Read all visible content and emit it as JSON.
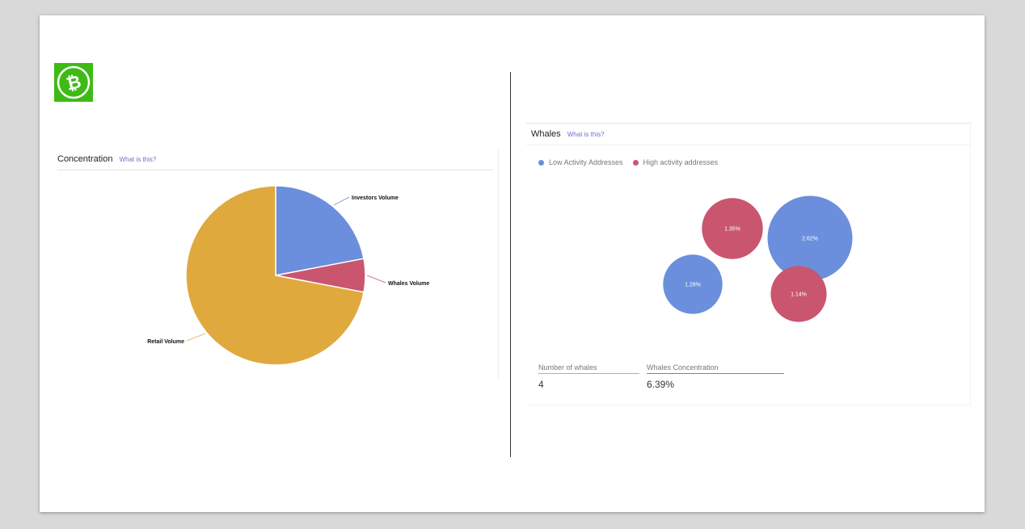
{
  "colors": {
    "blue": "#6b8fdc",
    "red": "#c9566e",
    "gold": "#e0a93e",
    "logo_green": "#3dbb14",
    "link": "#6a73c9"
  },
  "logo": {
    "icon": "bitcoin-cash-icon",
    "glyph": "₿"
  },
  "concentration": {
    "title": "Concentration",
    "link": "What is this?"
  },
  "whales": {
    "title": "Whales",
    "link": "What is this?",
    "stats": {
      "number_label": "Number of whales",
      "number_value": "4",
      "concentration_label": "Whales Concentration",
      "concentration_value": "6.39%"
    }
  },
  "chart_data": [
    {
      "type": "pie",
      "labels": [
        "Investors Volume",
        "Whales Volume",
        "Retail Volume"
      ],
      "values": [
        22,
        6,
        72
      ],
      "colors": [
        "#6b8fdc",
        "#c9566e",
        "#e0a93e"
      ]
    },
    {
      "type": "scatter",
      "legend": [
        "Low Activity Addresses",
        "High activity addresses"
      ],
      "legend_position": "top-left",
      "points": [
        {
          "series": "High activity addresses",
          "value": 1.35,
          "label": "1.35%"
        },
        {
          "series": "Low Activity Addresses",
          "value": 2.62,
          "label": "2.62%"
        },
        {
          "series": "Low Activity Addresses",
          "value": 1.28,
          "label": "1.28%"
        },
        {
          "series": "High activity addresses",
          "value": 1.14,
          "label": "1.14%"
        }
      ]
    }
  ]
}
